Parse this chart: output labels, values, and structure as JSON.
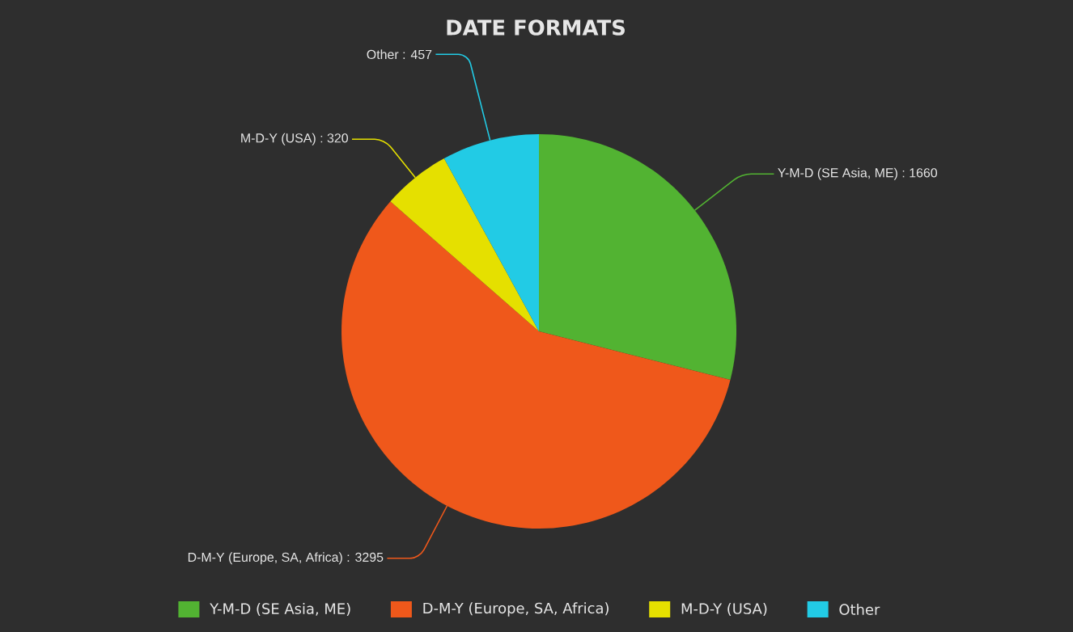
{
  "chart_data": {
    "type": "pie",
    "title": "DATE FORMATS",
    "categories": [
      "Y-M-D (SE Asia, ME)",
      "D-M-Y (Europe, SA, Africa)",
      "M-D-Y (USA)",
      "Other"
    ],
    "values": [
      1660,
      3295,
      320,
      457
    ],
    "colors": [
      "#52b332",
      "#ef581b",
      "#e5e000",
      "#22cbe5"
    ],
    "value_labels": [
      "Y-M-D (SE Asia, ME) : 1660",
      "D-M-Y (Europe, SA, Africa) : 3295",
      "M-D-Y (USA) : 320",
      "Other : 457"
    ],
    "legend": "bottom"
  }
}
